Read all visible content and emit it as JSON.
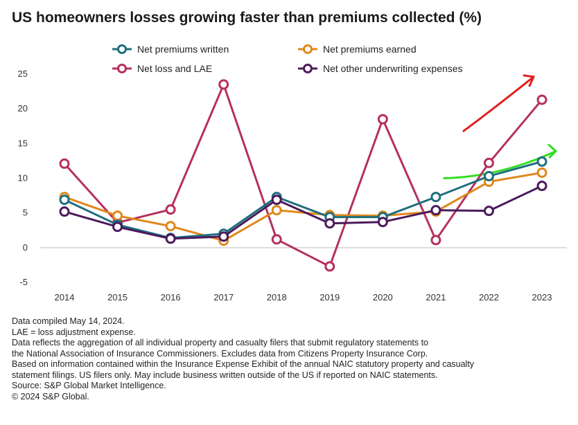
{
  "title": "US homeowners losses growing faster than premiums collected (%)",
  "chart_data": {
    "type": "line",
    "x": [
      "2014",
      "2015",
      "2016",
      "2017",
      "2018",
      "2019",
      "2020",
      "2021",
      "2022",
      "2023"
    ],
    "ylim": [
      -5,
      25
    ],
    "yticks": [
      "25",
      "20",
      "15",
      "10",
      "5",
      "0",
      "-5"
    ],
    "grid": false,
    "legend_placement": "top",
    "series": [
      {
        "name": "Net premiums written",
        "color": "#1f6e7e",
        "values": [
          6.9,
          3.3,
          1.4,
          2.0,
          7.3,
          4.4,
          4.4,
          7.3,
          10.3,
          12.4
        ]
      },
      {
        "name": "Net premiums earned",
        "color": "#e0881c",
        "values": [
          7.3,
          4.6,
          3.1,
          1.0,
          5.4,
          4.7,
          4.6,
          5.2,
          9.5,
          10.8
        ]
      },
      {
        "name": "Net loss and LAE",
        "color": "#b5305f",
        "values": [
          12.1,
          3.6,
          5.5,
          23.5,
          1.2,
          -2.7,
          18.5,
          1.1,
          12.2,
          21.3
        ]
      },
      {
        "name": "Net other underwriting expenses",
        "color": "#4b1a5c",
        "values": [
          5.2,
          3.0,
          1.3,
          1.6,
          6.9,
          3.5,
          3.7,
          5.4,
          5.3,
          8.9
        ]
      }
    ],
    "annotations": [
      {
        "type": "hand-drawn-arrow",
        "color": "#e02020",
        "near": "Net loss and LAE 2022-2023"
      },
      {
        "type": "hand-drawn-arrow",
        "color": "#33dd22",
        "near": "Net premiums written 2021-2023"
      }
    ]
  },
  "notes": [
    "Data compiled May 14, 2024.",
    "LAE = loss adjustment expense.",
    "Data reflects the aggregation of all individual property and casualty filers that submit regulatory statements to",
    "the National Association of Insurance Commissioners. Excludes data from Citizens Property Insurance Corp.",
    "Based on information contained within the Insurance Expense Exhibit of the annual NAIC statutory property and casualty",
    "statement filings. US filers only. May include business written outside of the US if reported on NAIC statements.",
    "Source: S&P Global Market Intelligence.",
    "© 2024 S&P Global."
  ]
}
